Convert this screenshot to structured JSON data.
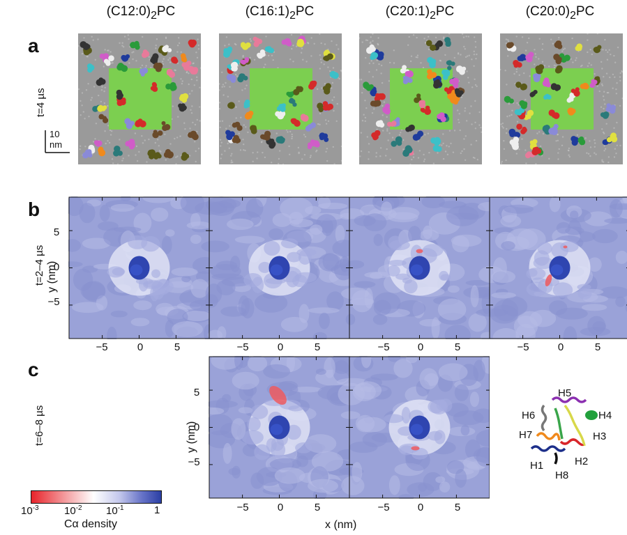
{
  "panels": {
    "a": "a",
    "b": "b",
    "c": "c"
  },
  "columns": [
    {
      "name": "(C12:0)",
      "sub": "2",
      "suffix": "PC"
    },
    {
      "name": "(C16:1)",
      "sub": "2",
      "suffix": "PC"
    },
    {
      "name": "(C20:1)",
      "sub": "2",
      "suffix": "PC"
    },
    {
      "name": "(C20:0)",
      "sub": "2",
      "suffix": "PC"
    }
  ],
  "rows": {
    "a_label": "t=4 µs",
    "b_label": "t=2–4 µs",
    "c_label": "t=6–8 µs"
  },
  "scale_bar": {
    "value": "10",
    "unit": "nm"
  },
  "axes": {
    "x_label": "x (nm)",
    "y_label": "y (nm)",
    "ticks": [
      "−5",
      "0",
      "5"
    ],
    "y_ticks": [
      "5",
      "0",
      "−5"
    ]
  },
  "colorbar": {
    "ticks": [
      "10",
      "10",
      "10",
      "1"
    ],
    "tick_exps": [
      "-3",
      "-2",
      "-1",
      ""
    ],
    "label": "Cα density",
    "colors": [
      "#e8232a",
      "#ffffff",
      "#2b3fa4"
    ]
  },
  "helix_labels": [
    "H5",
    "H6",
    "H4",
    "H7",
    "H3",
    "H1",
    "H2",
    "H8"
  ],
  "colors": {
    "lipid_gray": "#9a9a9a",
    "membrane_green": "#7ccf50",
    "density_blue": "#9aa2d8",
    "density_core": "#2f45b0"
  }
}
